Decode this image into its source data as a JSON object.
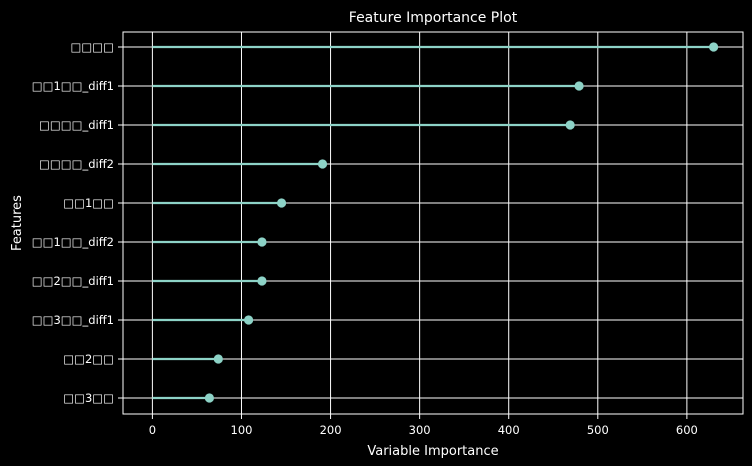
{
  "chart_data": {
    "type": "lollipop",
    "orientation": "horizontal",
    "title": "Feature Importance Plot",
    "xlabel": "Variable Importance",
    "ylabel": "Features",
    "xlim": [
      -33,
      663
    ],
    "xticks": [
      0,
      100,
      200,
      300,
      400,
      500,
      600
    ],
    "grid": true,
    "categories": [
      "□□□□",
      "□□1□□_diff1",
      "□□□□_diff1",
      "□□□□_diff2",
      "□□1□□",
      "□□1□□_diff2",
      "□□2□□_diff1",
      "□□3□□_diff1",
      "□□2□□",
      "□□3□□"
    ],
    "values": [
      630,
      479,
      469,
      191,
      145,
      123,
      123,
      108,
      74,
      64
    ],
    "colors": {
      "background": "#000000",
      "foreground": "#ffffff",
      "marker": "#8dd3c7"
    }
  }
}
